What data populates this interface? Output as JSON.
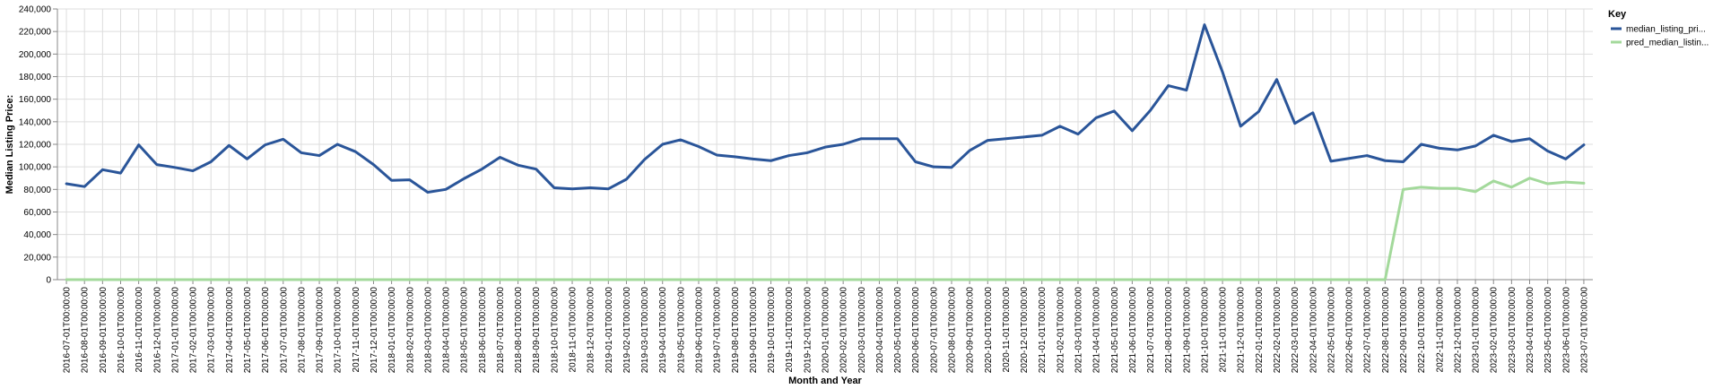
{
  "chart_data": {
    "type": "line",
    "title": "",
    "xlabel": "Month and Year",
    "ylabel": "Median Listing Price:",
    "ylim": [
      0,
      240000
    ],
    "y_ticks": [
      "0",
      "20,000",
      "40,000",
      "60,000",
      "80,000",
      "100,000",
      "120,000",
      "140,000",
      "160,000",
      "180,000",
      "200,000",
      "220,000",
      "240,000"
    ],
    "grid": true,
    "legend": {
      "title": "Key",
      "placement": "top-right"
    },
    "x": [
      "2016-07-01T00:00:00",
      "2016-08-01T00:00:00",
      "2016-09-01T00:00:00",
      "2016-10-01T00:00:00",
      "2016-11-01T00:00:00",
      "2016-12-01T00:00:00",
      "2017-01-01T00:00:00",
      "2017-02-01T00:00:00",
      "2017-03-01T00:00:00",
      "2017-04-01T00:00:00",
      "2017-05-01T00:00:00",
      "2017-06-01T00:00:00",
      "2017-07-01T00:00:00",
      "2017-08-01T00:00:00",
      "2017-09-01T00:00:00",
      "2017-10-01T00:00:00",
      "2017-11-01T00:00:00",
      "2017-12-01T00:00:00",
      "2018-01-01T00:00:00",
      "2018-02-01T00:00:00",
      "2018-03-01T00:00:00",
      "2018-04-01T00:00:00",
      "2018-05-01T00:00:00",
      "2018-06-01T00:00:00",
      "2018-07-01T00:00:00",
      "2018-08-01T00:00:00",
      "2018-09-01T00:00:00",
      "2018-10-01T00:00:00",
      "2018-11-01T00:00:00",
      "2018-12-01T00:00:00",
      "2019-01-01T00:00:00",
      "2019-02-01T00:00:00",
      "2019-03-01T00:00:00",
      "2019-04-01T00:00:00",
      "2019-05-01T00:00:00",
      "2019-06-01T00:00:00",
      "2019-07-01T00:00:00",
      "2019-08-01T00:00:00",
      "2019-09-01T00:00:00",
      "2019-10-01T00:00:00",
      "2019-11-01T00:00:00",
      "2019-12-01T00:00:00",
      "2020-01-01T00:00:00",
      "2020-02-01T00:00:00",
      "2020-03-01T00:00:00",
      "2020-04-01T00:00:00",
      "2020-05-01T00:00:00",
      "2020-06-01T00:00:00",
      "2020-07-01T00:00:00",
      "2020-08-01T00:00:00",
      "2020-09-01T00:00:00",
      "2020-10-01T00:00:00",
      "2020-11-01T00:00:00",
      "2020-12-01T00:00:00",
      "2021-01-01T00:00:00",
      "2021-02-01T00:00:00",
      "2021-03-01T00:00:00",
      "2021-04-01T00:00:00",
      "2021-05-01T00:00:00",
      "2021-06-01T00:00:00",
      "2021-07-01T00:00:00",
      "2021-08-01T00:00:00",
      "2021-09-01T00:00:00",
      "2021-10-01T00:00:00",
      "2021-11-01T00:00:00",
      "2021-12-01T00:00:00",
      "2022-01-01T00:00:00",
      "2022-02-01T00:00:00",
      "2022-03-01T00:00:00",
      "2022-04-01T00:00:00",
      "2022-05-01T00:00:00",
      "2022-06-01T00:00:00",
      "2022-07-01T00:00:00",
      "2022-08-01T00:00:00",
      "2022-09-01T00:00:00",
      "2022-10-01T00:00:00",
      "2022-11-01T00:00:00",
      "2022-12-01T00:00:00",
      "2023-01-01T00:00:00",
      "2023-02-01T00:00:00",
      "2023-03-01T00:00:00",
      "2023-04-01T00:00:00",
      "2023-05-01T00:00:00",
      "2023-06-01T00:00:00",
      "2023-07-01T00:00:00"
    ],
    "series": [
      {
        "name": "median_listing_pri...",
        "color": "#2a5599",
        "values": [
          85000,
          82500,
          97500,
          94500,
          119500,
          102000,
          99500,
          96500,
          104500,
          119000,
          107000,
          119500,
          124500,
          112500,
          110000,
          120000,
          113500,
          102000,
          88000,
          88500,
          77500,
          80000,
          89500,
          98000,
          108500,
          101500,
          98000,
          81500,
          80500,
          81500,
          80500,
          89000,
          106500,
          120000,
          124000,
          118000,
          110500,
          109000,
          107000,
          105500,
          110000,
          112500,
          117500,
          120000,
          125000,
          125000,
          125000,
          104500,
          100000,
          99500,
          114500,
          123500,
          125000,
          126500,
          128000,
          136000,
          129000,
          143500,
          149500,
          132000,
          150000,
          172000,
          168000,
          226000,
          184000,
          136000,
          149000,
          177500,
          138500,
          148000,
          105000,
          107500,
          110000,
          105500,
          104500,
          120000,
          116500,
          115000,
          118500,
          128000,
          122500,
          125000,
          114000,
          107000,
          119500
        ]
      },
      {
        "name": "pred_median_listin...",
        "color": "#a3d99b",
        "values": [
          0,
          0,
          0,
          0,
          0,
          0,
          0,
          0,
          0,
          0,
          0,
          0,
          0,
          0,
          0,
          0,
          0,
          0,
          0,
          0,
          0,
          0,
          0,
          0,
          0,
          0,
          0,
          0,
          0,
          0,
          0,
          0,
          0,
          0,
          0,
          0,
          0,
          0,
          0,
          0,
          0,
          0,
          0,
          0,
          0,
          0,
          0,
          0,
          0,
          0,
          0,
          0,
          0,
          0,
          0,
          0,
          0,
          0,
          0,
          0,
          0,
          0,
          0,
          0,
          0,
          0,
          0,
          0,
          0,
          0,
          0,
          0,
          0,
          0,
          80000,
          82000,
          81000,
          81000,
          78000,
          87500,
          82000,
          90000,
          85000,
          86500,
          85500
        ]
      }
    ]
  }
}
